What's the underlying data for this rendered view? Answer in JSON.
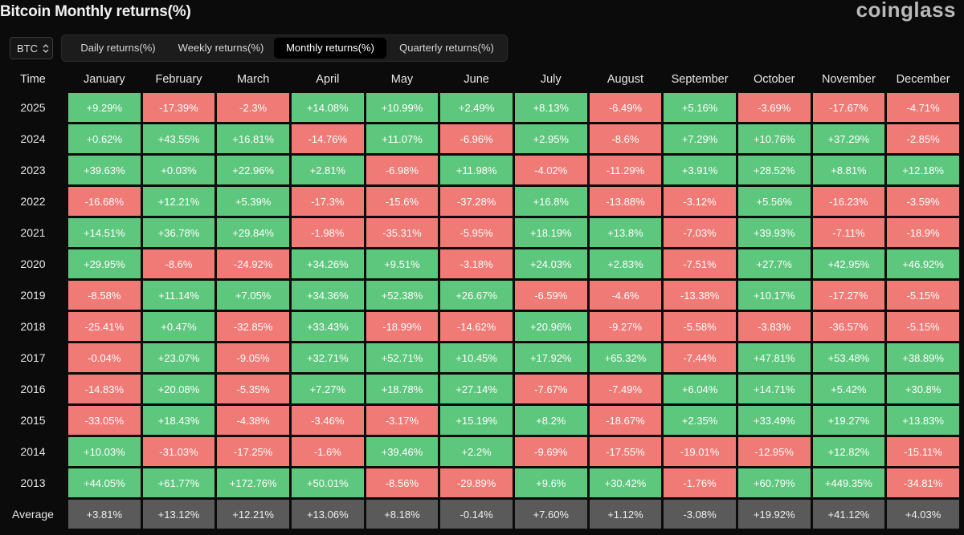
{
  "header": {
    "title": "Bitcoin Monthly returns(%)",
    "brand": "coinglass"
  },
  "asset_select": {
    "value": "BTC"
  },
  "tabs": [
    {
      "label": "Daily returns(%)",
      "active": false
    },
    {
      "label": "Weekly returns(%)",
      "active": false
    },
    {
      "label": "Monthly returns(%)",
      "active": true
    },
    {
      "label": "Quarterly returns(%)",
      "active": false
    }
  ],
  "colors": {
    "positive": "#5ec77e",
    "negative": "#ef7a76",
    "average": "#5a5a5a",
    "background": "#0b0b0b"
  },
  "table": {
    "columns": [
      "Time",
      "January",
      "February",
      "March",
      "April",
      "May",
      "June",
      "July",
      "August",
      "September",
      "October",
      "November",
      "December"
    ],
    "rows": [
      {
        "year": "2025",
        "values": [
          "+9.29%",
          "-17.39%",
          "-2.3%",
          "+14.08%",
          "+10.99%",
          "+2.49%",
          "+8.13%",
          "-6.49%",
          "+5.16%",
          "-3.69%",
          "-17.67%",
          "-4.71%"
        ]
      },
      {
        "year": "2024",
        "values": [
          "+0.62%",
          "+43.55%",
          "+16.81%",
          "-14.76%",
          "+11.07%",
          "-6.96%",
          "+2.95%",
          "-8.6%",
          "+7.29%",
          "+10.76%",
          "+37.29%",
          "-2.85%"
        ]
      },
      {
        "year": "2023",
        "values": [
          "+39.63%",
          "+0.03%",
          "+22.96%",
          "+2.81%",
          "-6.98%",
          "+11.98%",
          "-4.02%",
          "-11.29%",
          "+3.91%",
          "+28.52%",
          "+8.81%",
          "+12.18%"
        ]
      },
      {
        "year": "2022",
        "values": [
          "-16.68%",
          "+12.21%",
          "+5.39%",
          "-17.3%",
          "-15.6%",
          "-37.28%",
          "+16.8%",
          "-13.88%",
          "-3.12%",
          "+5.56%",
          "-16.23%",
          "-3.59%"
        ]
      },
      {
        "year": "2021",
        "values": [
          "+14.51%",
          "+36.78%",
          "+29.84%",
          "-1.98%",
          "-35.31%",
          "-5.95%",
          "+18.19%",
          "+13.8%",
          "-7.03%",
          "+39.93%",
          "-7.11%",
          "-18.9%"
        ]
      },
      {
        "year": "2020",
        "values": [
          "+29.95%",
          "-8.6%",
          "-24.92%",
          "+34.26%",
          "+9.51%",
          "-3.18%",
          "+24.03%",
          "+2.83%",
          "-7.51%",
          "+27.7%",
          "+42.95%",
          "+46.92%"
        ]
      },
      {
        "year": "2019",
        "values": [
          "-8.58%",
          "+11.14%",
          "+7.05%",
          "+34.36%",
          "+52.38%",
          "+26.67%",
          "-6.59%",
          "-4.6%",
          "-13.38%",
          "+10.17%",
          "-17.27%",
          "-5.15%"
        ]
      },
      {
        "year": "2018",
        "values": [
          "-25.41%",
          "+0.47%",
          "-32.85%",
          "+33.43%",
          "-18.99%",
          "-14.62%",
          "+20.96%",
          "-9.27%",
          "-5.58%",
          "-3.83%",
          "-36.57%",
          "-5.15%"
        ]
      },
      {
        "year": "2017",
        "values": [
          "-0.04%",
          "+23.07%",
          "-9.05%",
          "+32.71%",
          "+52.71%",
          "+10.45%",
          "+17.92%",
          "+65.32%",
          "-7.44%",
          "+47.81%",
          "+53.48%",
          "+38.89%"
        ]
      },
      {
        "year": "2016",
        "values": [
          "-14.83%",
          "+20.08%",
          "-5.35%",
          "+7.27%",
          "+18.78%",
          "+27.14%",
          "-7.67%",
          "-7.49%",
          "+6.04%",
          "+14.71%",
          "+5.42%",
          "+30.8%"
        ]
      },
      {
        "year": "2015",
        "values": [
          "-33.05%",
          "+18.43%",
          "-4.38%",
          "-3.46%",
          "-3.17%",
          "+15.19%",
          "+8.2%",
          "-18.67%",
          "+2.35%",
          "+33.49%",
          "+19.27%",
          "+13.83%"
        ]
      },
      {
        "year": "2014",
        "values": [
          "+10.03%",
          "-31.03%",
          "-17.25%",
          "-1.6%",
          "+39.46%",
          "+2.2%",
          "-9.69%",
          "-17.55%",
          "-19.01%",
          "-12.95%",
          "+12.82%",
          "-15.11%"
        ]
      },
      {
        "year": "2013",
        "values": [
          "+44.05%",
          "+61.77%",
          "+172.76%",
          "+50.01%",
          "-8.56%",
          "-29.89%",
          "+9.6%",
          "+30.42%",
          "-1.76%",
          "+60.79%",
          "+449.35%",
          "-34.81%"
        ]
      }
    ],
    "average": {
      "label": "Average",
      "values": [
        "+3.81%",
        "+13.12%",
        "+12.21%",
        "+13.06%",
        "+8.18%",
        "-0.14%",
        "+7.60%",
        "+1.12%",
        "-3.08%",
        "+19.92%",
        "+41.12%",
        "+4.03%"
      ]
    }
  }
}
